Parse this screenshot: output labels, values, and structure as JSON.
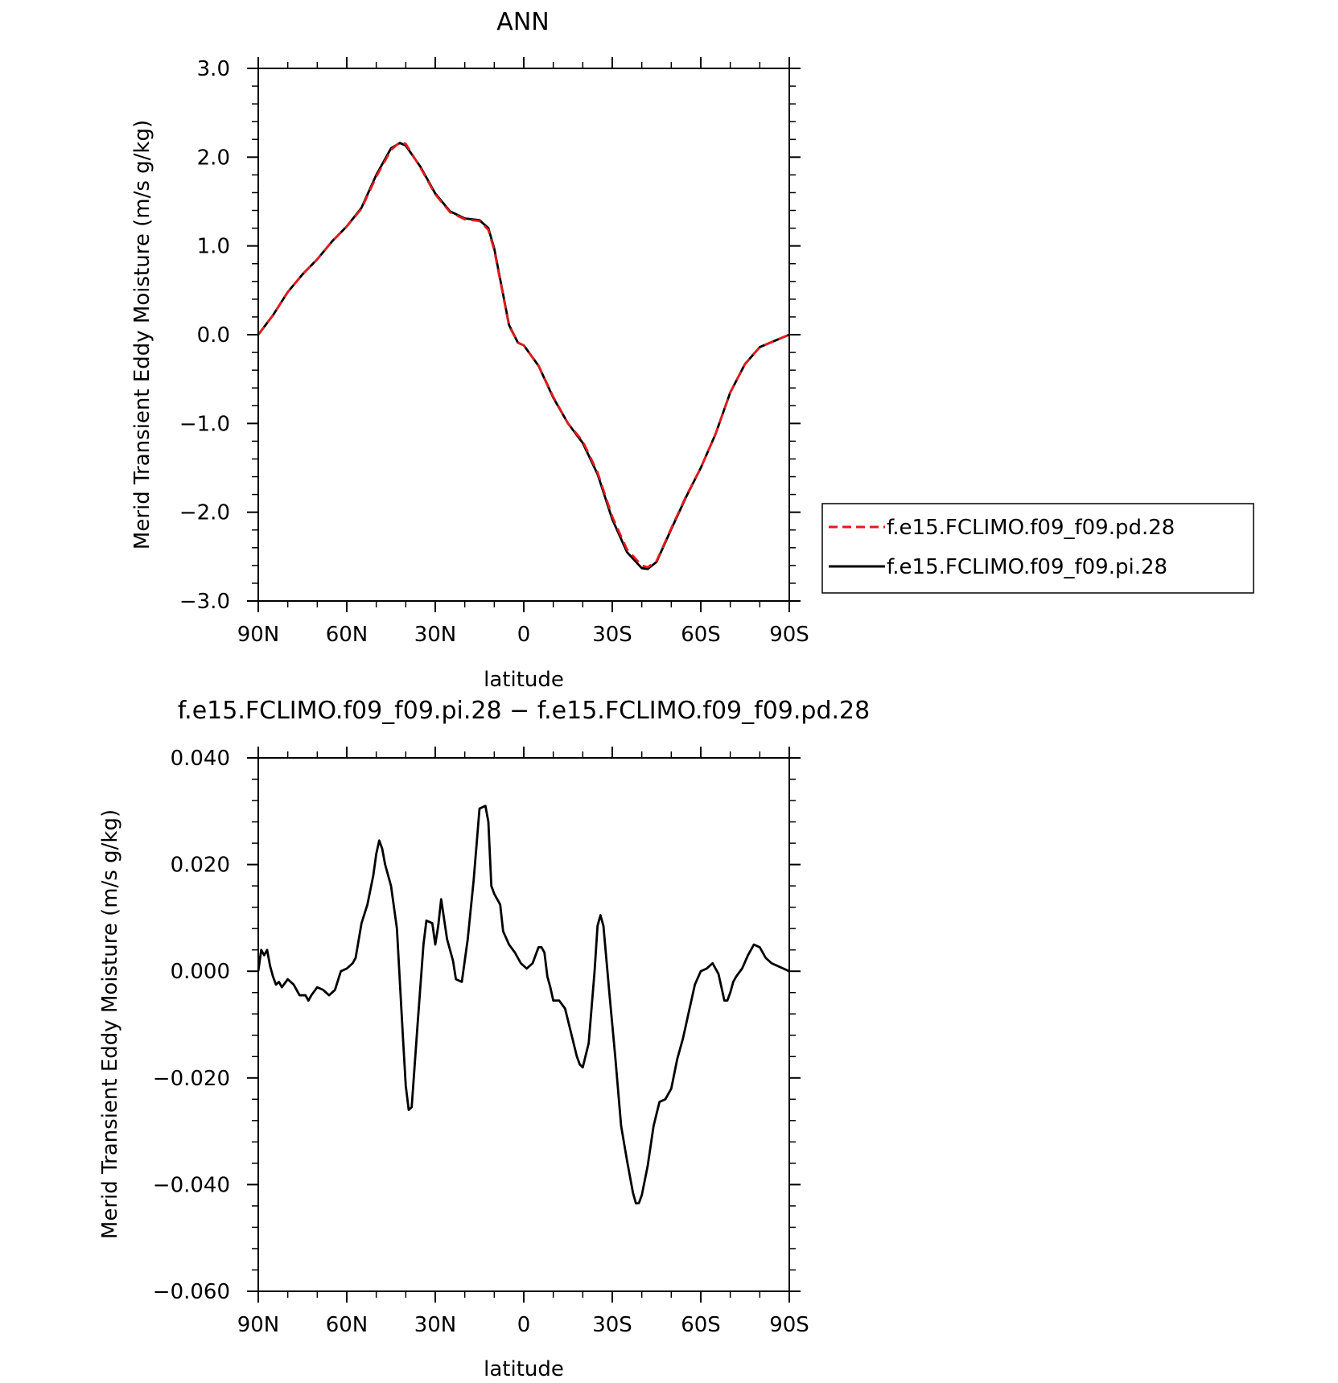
{
  "chart_data": [
    {
      "type": "line",
      "title": "ANN",
      "xlabel": "latitude",
      "ylabel": "Merid Transient Eddy Moisture (m/s g/kg)",
      "xlim": [
        90,
        -90
      ],
      "ylim": [
        -3.0,
        3.0
      ],
      "x_ticks": [
        {
          "value": 90,
          "label": "90N"
        },
        {
          "value": 60,
          "label": "60N"
        },
        {
          "value": 30,
          "label": "30N"
        },
        {
          "value": 0,
          "label": "0"
        },
        {
          "value": -30,
          "label": "30S"
        },
        {
          "value": -60,
          "label": "60S"
        },
        {
          "value": -90,
          "label": "90S"
        }
      ],
      "y_ticks": [
        {
          "value": 3.0,
          "label": "3.0"
        },
        {
          "value": 2.0,
          "label": "2.0"
        },
        {
          "value": 1.0,
          "label": "1.0"
        },
        {
          "value": 0.0,
          "label": "0.0"
        },
        {
          "value": -1.0,
          "label": "−1.0"
        },
        {
          "value": -2.0,
          "label": "−2.0"
        },
        {
          "value": -3.0,
          "label": "−3.0"
        }
      ],
      "legend": {
        "placement": "right",
        "entries": [
          {
            "name": "f.e15.FCLIMO.f09_f09.pd.28",
            "color": "#e31a1c",
            "dash": "dashed"
          },
          {
            "name": "f.e15.FCLIMO.f09_f09.pi.28",
            "color": "#000000",
            "dash": "solid"
          }
        ]
      },
      "series": [
        {
          "name": "f.e15.FCLIMO.f09_f09.pd.28",
          "color": "#e31a1c",
          "dash": "dashed",
          "x": [
            90,
            85,
            80,
            75,
            70,
            65,
            60,
            55,
            50,
            45,
            42,
            40,
            35,
            30,
            25,
            20,
            15,
            12,
            10,
            5,
            2,
            0,
            -5,
            -10,
            -15,
            -20,
            -25,
            -30,
            -35,
            -40,
            -42,
            -45,
            -50,
            -55,
            -60,
            -65,
            -70,
            -75,
            -80,
            -85,
            -90
          ],
          "y": [
            0.0,
            0.22,
            0.48,
            0.68,
            0.85,
            1.05,
            1.22,
            1.42,
            1.78,
            2.08,
            2.17,
            2.15,
            1.88,
            1.58,
            1.38,
            1.3,
            1.28,
            1.18,
            0.95,
            0.1,
            -0.09,
            -0.12,
            -0.35,
            -0.7,
            -1.0,
            -1.2,
            -1.55,
            -2.05,
            -2.42,
            -2.6,
            -2.62,
            -2.55,
            -2.18,
            -1.82,
            -1.5,
            -1.12,
            -0.65,
            -0.33,
            -0.14,
            -0.07,
            0.0
          ]
        },
        {
          "name": "f.e15.FCLIMO.f09_f09.pi.28",
          "color": "#000000",
          "dash": "solid",
          "x": [
            90,
            85,
            80,
            75,
            70,
            65,
            60,
            55,
            50,
            45,
            42,
            40,
            35,
            30,
            25,
            20,
            15,
            12,
            10,
            5,
            2,
            0,
            -5,
            -10,
            -15,
            -20,
            -25,
            -30,
            -35,
            -40,
            -42,
            -45,
            -50,
            -55,
            -60,
            -65,
            -70,
            -75,
            -80,
            -85,
            -90
          ],
          "y": [
            0.0,
            0.22,
            0.48,
            0.68,
            0.85,
            1.05,
            1.22,
            1.43,
            1.8,
            2.1,
            2.16,
            2.13,
            1.89,
            1.59,
            1.39,
            1.31,
            1.29,
            1.2,
            0.97,
            0.11,
            -0.09,
            -0.12,
            -0.35,
            -0.71,
            -1.0,
            -1.22,
            -1.57,
            -2.08,
            -2.45,
            -2.63,
            -2.64,
            -2.56,
            -2.19,
            -1.83,
            -1.5,
            -1.12,
            -0.65,
            -0.33,
            -0.14,
            -0.07,
            0.0
          ]
        }
      ]
    },
    {
      "type": "line",
      "title": "f.e15.FCLIMO.f09_f09.pi.28 − f.e15.FCLIMO.f09_f09.pd.28",
      "xlabel": "latitude",
      "ylabel": "Merid Transient Eddy Moisture (m/s g/kg)",
      "xlim": [
        90,
        -90
      ],
      "ylim": [
        -0.06,
        0.04
      ],
      "x_ticks": [
        {
          "value": 90,
          "label": "90N"
        },
        {
          "value": 60,
          "label": "60N"
        },
        {
          "value": 30,
          "label": "30N"
        },
        {
          "value": 0,
          "label": "0"
        },
        {
          "value": -30,
          "label": "30S"
        },
        {
          "value": -60,
          "label": "60S"
        },
        {
          "value": -90,
          "label": "90S"
        }
      ],
      "y_ticks": [
        {
          "value": 0.04,
          "label": "0.040"
        },
        {
          "value": 0.02,
          "label": "0.020"
        },
        {
          "value": 0.0,
          "label": "0.000"
        },
        {
          "value": -0.02,
          "label": "−0.020"
        },
        {
          "value": -0.04,
          "label": "−0.040"
        },
        {
          "value": -0.06,
          "label": "−0.060"
        }
      ],
      "series": [
        {
          "color": "#000000",
          "dash": "solid",
          "x": [
            90,
            89,
            88,
            87,
            86,
            85,
            84,
            83,
            82,
            80,
            78,
            76,
            74,
            73,
            72,
            70,
            68,
            66,
            64,
            62,
            60,
            58,
            57,
            55,
            53,
            51,
            50,
            49,
            48,
            47,
            45,
            43,
            41,
            40,
            39,
            38,
            36,
            34,
            33,
            31,
            30,
            29,
            28,
            26,
            24,
            23,
            21,
            19,
            17,
            15,
            13,
            12,
            11,
            10,
            8,
            7,
            5,
            3,
            1,
            -1,
            -3,
            -5,
            -6,
            -7,
            -8,
            -9,
            -10,
            -12,
            -14,
            -16,
            -18,
            -19,
            -20,
            -22,
            -24,
            -25,
            -26,
            -27,
            -29,
            -31,
            -33,
            -35,
            -37,
            -38,
            -39,
            -40,
            -42,
            -44,
            -46,
            -48,
            -50,
            -52,
            -54,
            -56,
            -58,
            -60,
            -62,
            -64,
            -66,
            -67,
            -68,
            -69,
            -70,
            -71,
            -72,
            -74,
            -76,
            -78,
            -80,
            -82,
            -84,
            -86,
            -88,
            -90
          ],
          "y": [
            0.0,
            0.004,
            0.003,
            0.004,
            0.001,
            -0.001,
            -0.0025,
            -0.002,
            -0.003,
            -0.0015,
            -0.0025,
            -0.0045,
            -0.0045,
            -0.0055,
            -0.0045,
            -0.003,
            -0.0035,
            -0.0045,
            -0.0035,
            0.0,
            0.0005,
            0.0015,
            0.0025,
            0.009,
            0.0125,
            0.018,
            0.022,
            0.0245,
            0.023,
            0.02,
            0.016,
            0.008,
            -0.012,
            -0.0215,
            -0.026,
            -0.0255,
            -0.01,
            0.005,
            0.0095,
            0.009,
            0.005,
            0.0085,
            0.0135,
            0.006,
            0.002,
            -0.0015,
            -0.002,
            0.006,
            0.017,
            0.0305,
            0.031,
            0.028,
            0.016,
            0.0145,
            0.0125,
            0.0075,
            0.005,
            0.0035,
            0.0015,
            0.0005,
            0.0015,
            0.0045,
            0.0045,
            0.0035,
            -0.001,
            -0.003,
            -0.0055,
            -0.0055,
            -0.007,
            -0.0115,
            -0.016,
            -0.0175,
            -0.018,
            -0.0135,
            0.0,
            0.0085,
            0.0105,
            0.0085,
            -0.004,
            -0.016,
            -0.029,
            -0.0355,
            -0.0415,
            -0.0435,
            -0.0435,
            -0.042,
            -0.0365,
            -0.029,
            -0.0245,
            -0.024,
            -0.022,
            -0.0165,
            -0.0125,
            -0.0075,
            -0.0025,
            0.0,
            0.0005,
            0.0015,
            -0.0005,
            -0.003,
            -0.0055,
            -0.0055,
            -0.004,
            -0.002,
            -0.001,
            0.0005,
            0.003,
            0.005,
            0.0045,
            0.0025,
            0.0015,
            0.001,
            0.0005,
            0.0
          ]
        }
      ]
    }
  ]
}
